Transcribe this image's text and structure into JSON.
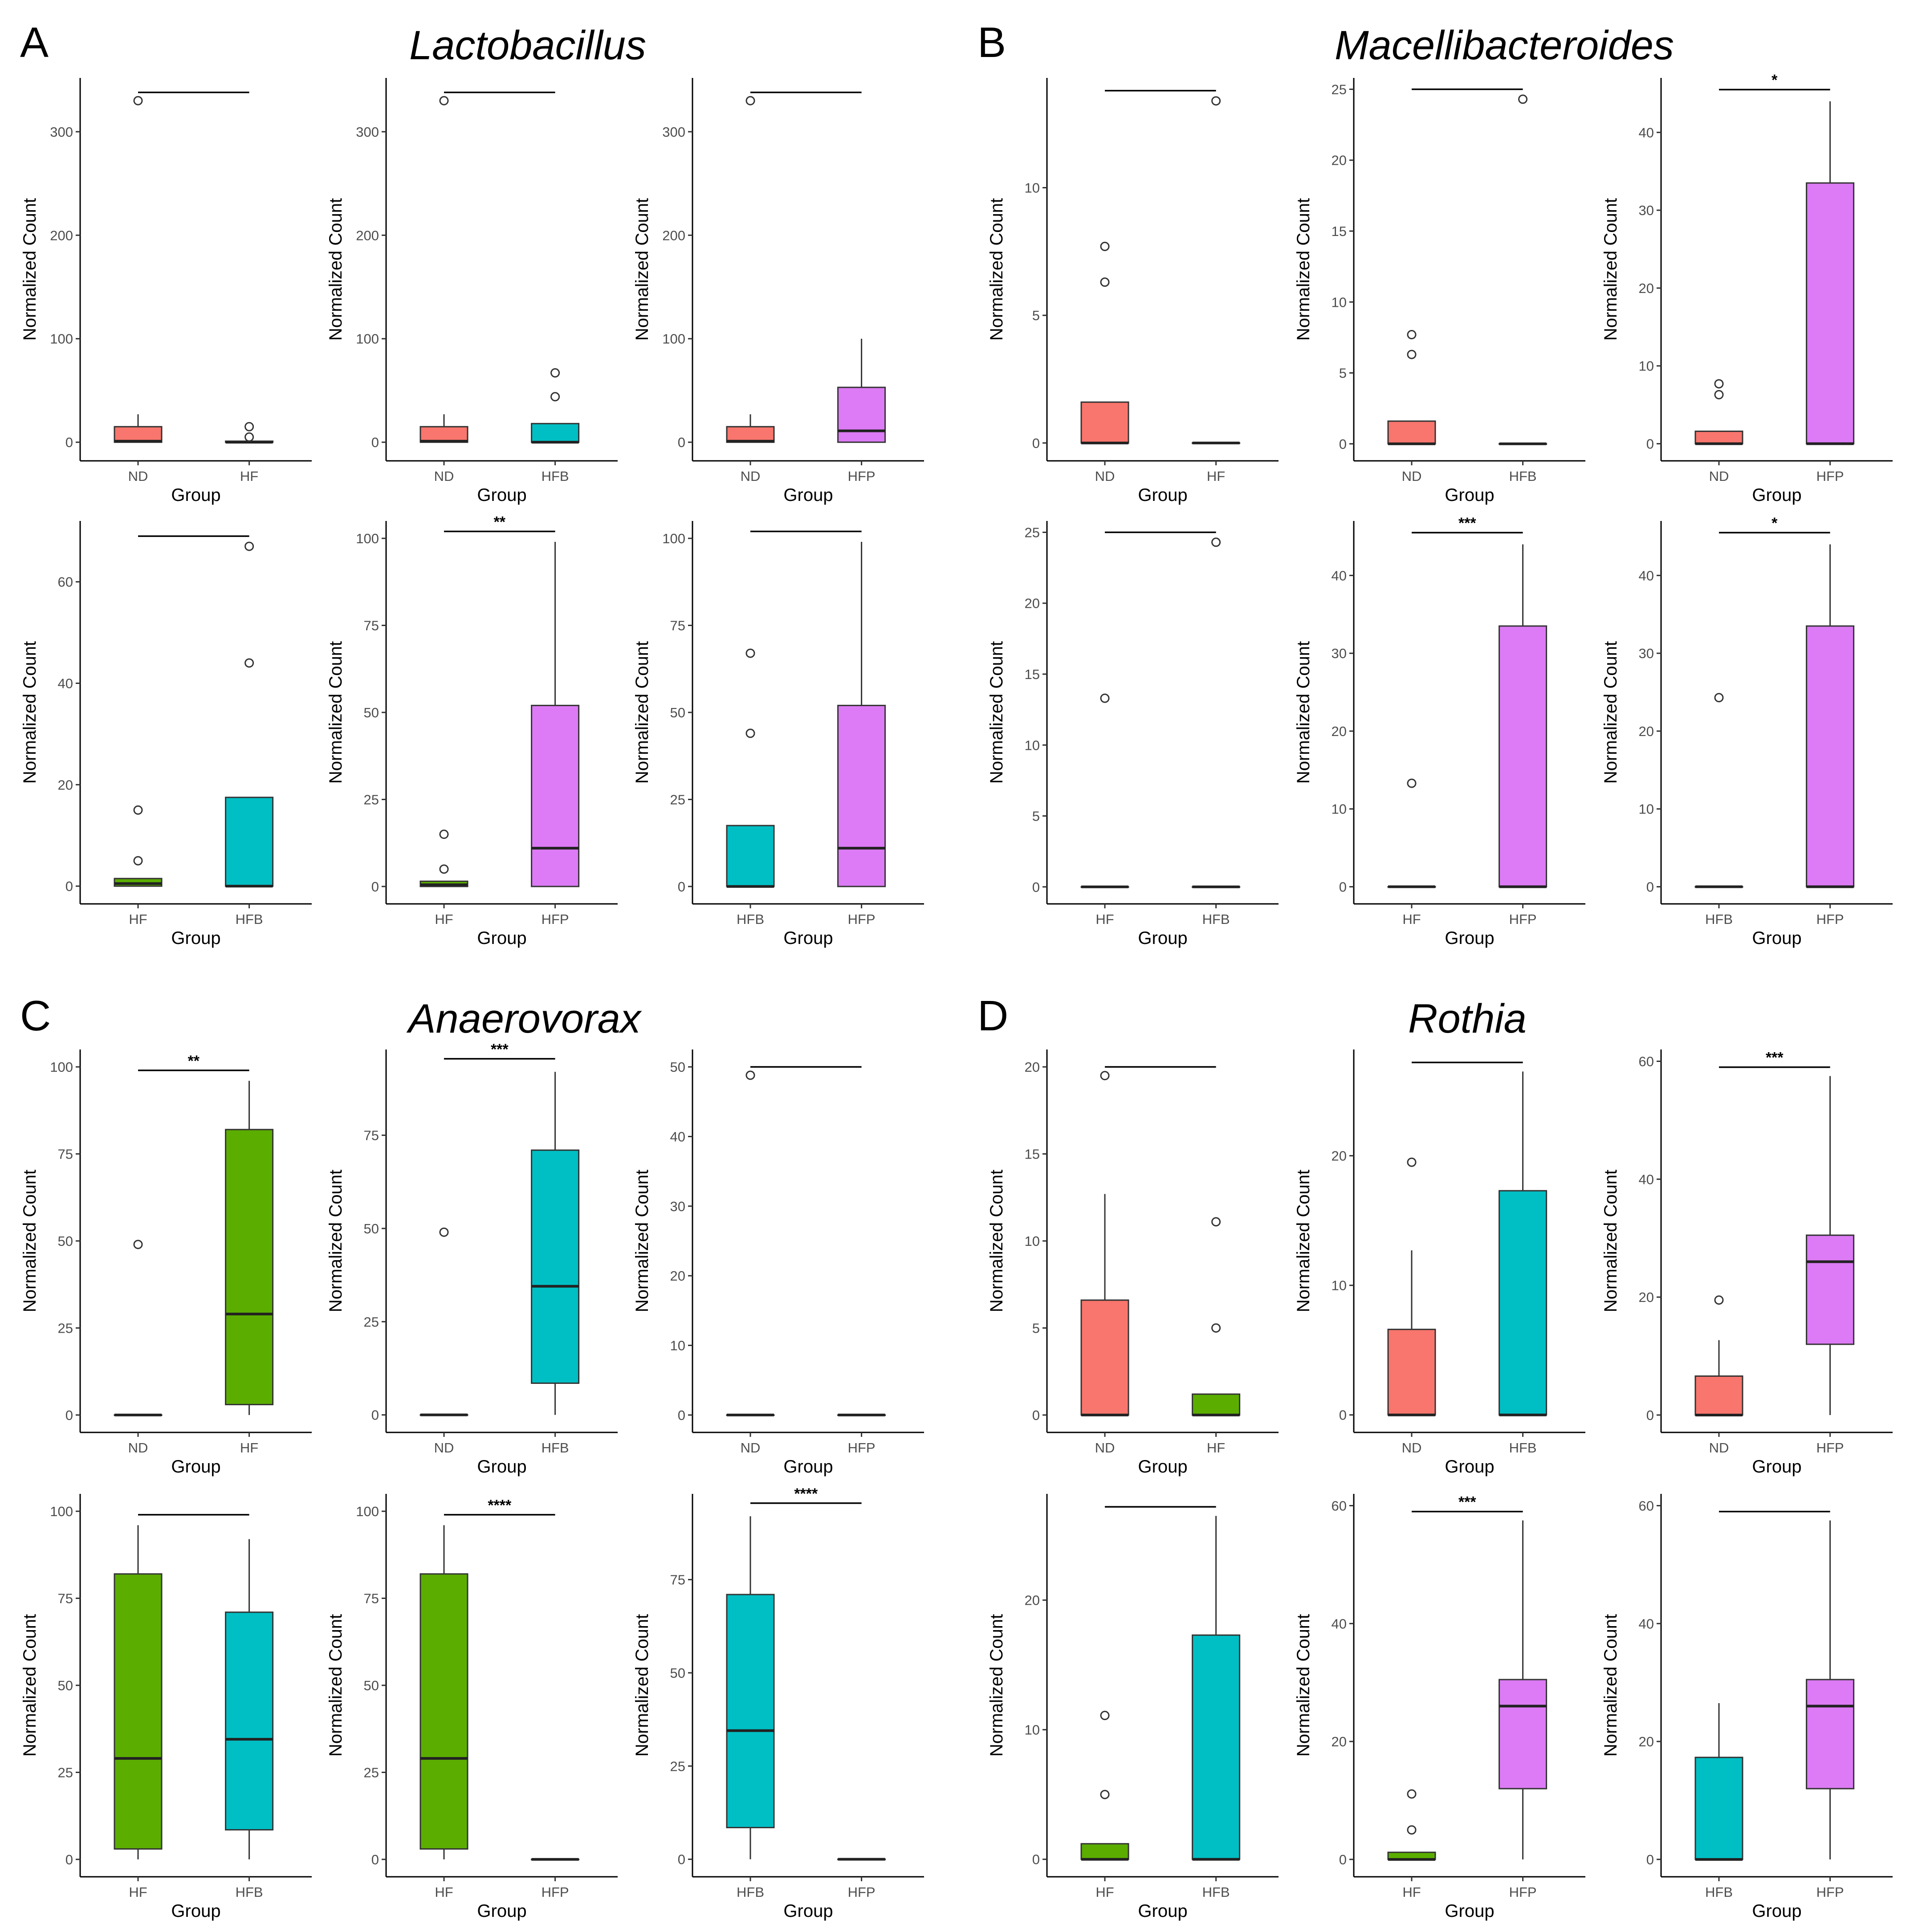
{
  "colors": {
    "ND": "#F8766D",
    "HF": "#5BAE00",
    "HFB": "#00BFC4",
    "HFP": "#DC7BF5"
  },
  "panels": [
    {
      "letter": "A",
      "title": "Lactobacillus"
    },
    {
      "letter": "B",
      "title": "Macellibacteroides"
    },
    {
      "letter": "C",
      "title": "Anaerovorax"
    },
    {
      "letter": "D",
      "title": "Rothia"
    }
  ],
  "chart_data": [
    {
      "type": "box",
      "panel": "A",
      "xlabel": "Group",
      "ylabel": "Normalized Count",
      "ylim": [
        -18,
        352
      ],
      "yticks": [
        0,
        100,
        200,
        300
      ],
      "sig_y": 338,
      "sig": "",
      "groups": [
        {
          "name": "ND",
          "q1": 0,
          "median": 1,
          "q3": 15,
          "lo": 0,
          "hi": 27,
          "outliers": [
            330
          ]
        },
        {
          "name": "HF",
          "q1": 0,
          "median": 0,
          "q3": 1,
          "lo": 0,
          "hi": 1,
          "outliers": [
            5,
            15
          ]
        }
      ]
    },
    {
      "type": "box",
      "panel": "A",
      "xlabel": "Group",
      "ylabel": "Normalized Count",
      "ylim": [
        -18,
        352
      ],
      "yticks": [
        0,
        100,
        200,
        300
      ],
      "sig_y": 338,
      "sig": "",
      "groups": [
        {
          "name": "ND",
          "q1": 0,
          "median": 1,
          "q3": 15,
          "lo": 0,
          "hi": 27,
          "outliers": [
            330
          ]
        },
        {
          "name": "HFB",
          "q1": 0,
          "median": 0,
          "q3": 18,
          "lo": 0,
          "hi": 18,
          "outliers": [
            44,
            67
          ]
        }
      ]
    },
    {
      "type": "box",
      "panel": "A",
      "xlabel": "Group",
      "ylabel": "Normalized Count",
      "ylim": [
        -18,
        352
      ],
      "yticks": [
        0,
        100,
        200,
        300
      ],
      "sig_y": 338,
      "sig": "",
      "groups": [
        {
          "name": "ND",
          "q1": 0,
          "median": 1,
          "q3": 15,
          "lo": 0,
          "hi": 27,
          "outliers": [
            330
          ]
        },
        {
          "name": "HFP",
          "q1": 0,
          "median": 11,
          "q3": 53,
          "lo": 0,
          "hi": 100,
          "outliers": []
        }
      ]
    },
    {
      "type": "box",
      "panel": "A",
      "xlabel": "Group",
      "ylabel": "Normalized Count",
      "ylim": [
        -3.5,
        72
      ],
      "yticks": [
        0,
        20,
        40,
        60
      ],
      "sig_y": 69,
      "sig": "",
      "groups": [
        {
          "name": "HF",
          "q1": 0,
          "median": 0.5,
          "q3": 1.5,
          "lo": 0,
          "hi": 1.5,
          "outliers": [
            5,
            15
          ]
        },
        {
          "name": "HFB",
          "q1": 0,
          "median": 0,
          "q3": 17.5,
          "lo": 0,
          "hi": 17.5,
          "outliers": [
            44,
            67
          ]
        }
      ]
    },
    {
      "type": "box",
      "panel": "A",
      "xlabel": "Group",
      "ylabel": "Normalized Count",
      "ylim": [
        -5,
        105
      ],
      "yticks": [
        0,
        25,
        50,
        75,
        100
      ],
      "sig_y": 102,
      "sig": "**",
      "groups": [
        {
          "name": "HF",
          "q1": 0,
          "median": 0.5,
          "q3": 1.5,
          "lo": 0,
          "hi": 1.5,
          "outliers": [
            5,
            15
          ]
        },
        {
          "name": "HFP",
          "q1": 0,
          "median": 11,
          "q3": 52,
          "lo": 0,
          "hi": 99,
          "outliers": []
        }
      ]
    },
    {
      "type": "box",
      "panel": "A",
      "xlabel": "Group",
      "ylabel": "Normalized Count",
      "ylim": [
        -5,
        105
      ],
      "yticks": [
        0,
        25,
        50,
        75,
        100
      ],
      "sig_y": 102,
      "sig": "",
      "groups": [
        {
          "name": "HFB",
          "q1": 0,
          "median": 0,
          "q3": 17.5,
          "lo": 0,
          "hi": 17.5,
          "outliers": [
            44,
            67
          ]
        },
        {
          "name": "HFP",
          "q1": 0,
          "median": 11,
          "q3": 52,
          "lo": 0,
          "hi": 99,
          "outliers": []
        }
      ]
    },
    {
      "type": "box",
      "panel": "B",
      "xlabel": "Group",
      "ylabel": "Normalized Count",
      "ylim": [
        -0.7,
        14.3
      ],
      "yticks": [
        0,
        5,
        10
      ],
      "sig_y": 13.8,
      "sig": "",
      "groups": [
        {
          "name": "ND",
          "q1": 0,
          "median": 0,
          "q3": 1.6,
          "lo": 0,
          "hi": 1.6,
          "outliers": [
            6.3,
            7.7
          ]
        },
        {
          "name": "HF",
          "q1": 0,
          "median": 0,
          "q3": 0,
          "lo": 0,
          "hi": 0,
          "outliers": [
            13.4
          ]
        }
      ]
    },
    {
      "type": "box",
      "panel": "B",
      "xlabel": "Group",
      "ylabel": "Normalized Count",
      "ylim": [
        -1.2,
        25.8
      ],
      "yticks": [
        0,
        5,
        10,
        15,
        20,
        25
      ],
      "sig_y": 25,
      "sig": "",
      "groups": [
        {
          "name": "ND",
          "q1": 0,
          "median": 0,
          "q3": 1.6,
          "lo": 0,
          "hi": 1.6,
          "outliers": [
            6.3,
            7.7
          ]
        },
        {
          "name": "HFB",
          "q1": 0,
          "median": 0,
          "q3": 0,
          "lo": 0,
          "hi": 0,
          "outliers": [
            24.3
          ]
        }
      ]
    },
    {
      "type": "box",
      "panel": "B",
      "xlabel": "Group",
      "ylabel": "Normalized Count",
      "ylim": [
        -2.2,
        47
      ],
      "yticks": [
        0,
        10,
        20,
        30,
        40
      ],
      "sig_y": 45.5,
      "sig": "*",
      "groups": [
        {
          "name": "ND",
          "q1": 0,
          "median": 0,
          "q3": 1.6,
          "lo": 0,
          "hi": 1.6,
          "outliers": [
            6.3,
            7.7
          ]
        },
        {
          "name": "HFP",
          "q1": 0,
          "median": 0,
          "q3": 33.5,
          "lo": 0,
          "hi": 44,
          "outliers": []
        }
      ]
    },
    {
      "type": "box",
      "panel": "B",
      "xlabel": "Group",
      "ylabel": "Normalized Count",
      "ylim": [
        -1.2,
        25.8
      ],
      "yticks": [
        0,
        5,
        10,
        15,
        20,
        25
      ],
      "sig_y": 25,
      "sig": "",
      "groups": [
        {
          "name": "HF",
          "q1": 0,
          "median": 0,
          "q3": 0,
          "lo": 0,
          "hi": 0,
          "outliers": [
            13.3
          ]
        },
        {
          "name": "HFB",
          "q1": 0,
          "median": 0,
          "q3": 0,
          "lo": 0,
          "hi": 0,
          "outliers": [
            24.3
          ]
        }
      ]
    },
    {
      "type": "box",
      "panel": "B",
      "xlabel": "Group",
      "ylabel": "Normalized Count",
      "ylim": [
        -2.2,
        47
      ],
      "yticks": [
        0,
        10,
        20,
        30,
        40
      ],
      "sig_y": 45.5,
      "sig": "***",
      "groups": [
        {
          "name": "HF",
          "q1": 0,
          "median": 0,
          "q3": 0,
          "lo": 0,
          "hi": 0,
          "outliers": [
            13.3
          ]
        },
        {
          "name": "HFP",
          "q1": 0,
          "median": 0,
          "q3": 33.5,
          "lo": 0,
          "hi": 44,
          "outliers": []
        }
      ]
    },
    {
      "type": "box",
      "panel": "B",
      "xlabel": "Group",
      "ylabel": "Normalized Count",
      "ylim": [
        -2.2,
        47
      ],
      "yticks": [
        0,
        10,
        20,
        30,
        40
      ],
      "sig_y": 45.5,
      "sig": "*",
      "groups": [
        {
          "name": "HFB",
          "q1": 0,
          "median": 0,
          "q3": 0,
          "lo": 0,
          "hi": 0,
          "outliers": [
            24.3
          ]
        },
        {
          "name": "HFP",
          "q1": 0,
          "median": 0,
          "q3": 33.5,
          "lo": 0,
          "hi": 44,
          "outliers": []
        }
      ]
    },
    {
      "type": "box",
      "panel": "C",
      "xlabel": "Group",
      "ylabel": "Normalized Count",
      "ylim": [
        -5,
        105
      ],
      "yticks": [
        0,
        25,
        50,
        75,
        100
      ],
      "sig_y": 99,
      "sig": "**",
      "groups": [
        {
          "name": "ND",
          "q1": 0,
          "median": 0,
          "q3": 0,
          "lo": 0,
          "hi": 0,
          "outliers": [
            49
          ]
        },
        {
          "name": "HF",
          "q1": 3,
          "median": 29,
          "q3": 82,
          "lo": 0,
          "hi": 96,
          "outliers": []
        }
      ]
    },
    {
      "type": "box",
      "panel": "C",
      "xlabel": "Group",
      "ylabel": "Normalized Count",
      "ylim": [
        -4.7,
        98
      ],
      "yticks": [
        0,
        25,
        50,
        75
      ],
      "sig_y": 95.5,
      "sig": "***",
      "groups": [
        {
          "name": "ND",
          "q1": 0,
          "median": 0,
          "q3": 0,
          "lo": 0,
          "hi": 0,
          "outliers": [
            49
          ]
        },
        {
          "name": "HFB",
          "q1": 8.5,
          "median": 34.5,
          "q3": 71,
          "lo": 0,
          "hi": 92,
          "outliers": []
        }
      ]
    },
    {
      "type": "box",
      "panel": "C",
      "xlabel": "Group",
      "ylabel": "Normalized Count",
      "ylim": [
        -2.5,
        52.5
      ],
      "yticks": [
        0,
        10,
        20,
        30,
        40,
        50
      ],
      "sig_y": 50,
      "sig": "",
      "groups": [
        {
          "name": "ND",
          "q1": 0,
          "median": 0,
          "q3": 0,
          "lo": 0,
          "hi": 0,
          "outliers": [
            48.8
          ]
        },
        {
          "name": "HFP",
          "q1": 0,
          "median": 0,
          "q3": 0,
          "lo": 0,
          "hi": 0,
          "outliers": []
        }
      ]
    },
    {
      "type": "box",
      "panel": "C",
      "xlabel": "Group",
      "ylabel": "Normalized Count",
      "ylim": [
        -5,
        105
      ],
      "yticks": [
        0,
        25,
        50,
        75,
        100
      ],
      "sig_y": 99,
      "sig": "",
      "groups": [
        {
          "name": "HF",
          "q1": 3,
          "median": 29,
          "q3": 82,
          "lo": 0,
          "hi": 96,
          "outliers": []
        },
        {
          "name": "HFB",
          "q1": 8.5,
          "median": 34.5,
          "q3": 71,
          "lo": 0,
          "hi": 92,
          "outliers": []
        }
      ]
    },
    {
      "type": "box",
      "panel": "C",
      "xlabel": "Group",
      "ylabel": "Normalized Count",
      "ylim": [
        -5,
        105
      ],
      "yticks": [
        0,
        25,
        50,
        75,
        100
      ],
      "sig_y": 99,
      "sig": "****",
      "groups": [
        {
          "name": "HF",
          "q1": 3,
          "median": 29,
          "q3": 82,
          "lo": 0,
          "hi": 96,
          "outliers": []
        },
        {
          "name": "HFP",
          "q1": 0,
          "median": 0,
          "q3": 0,
          "lo": 0,
          "hi": 0,
          "outliers": []
        }
      ]
    },
    {
      "type": "box",
      "panel": "C",
      "xlabel": "Group",
      "ylabel": "Normalized Count",
      "ylim": [
        -4.7,
        98
      ],
      "yticks": [
        0,
        25,
        50,
        75
      ],
      "sig_y": 95.5,
      "sig": "****",
      "groups": [
        {
          "name": "HFB",
          "q1": 8.5,
          "median": 34.5,
          "q3": 71,
          "lo": 0,
          "hi": 92,
          "outliers": []
        },
        {
          "name": "HFP",
          "q1": 0,
          "median": 0,
          "q3": 0,
          "lo": 0,
          "hi": 0,
          "outliers": []
        }
      ]
    },
    {
      "type": "box",
      "panel": "D",
      "xlabel": "Group",
      "ylabel": "Normalized Count",
      "ylim": [
        -1,
        21
      ],
      "yticks": [
        0,
        5,
        10,
        15,
        20
      ],
      "sig_y": 20,
      "sig": "",
      "groups": [
        {
          "name": "ND",
          "q1": 0,
          "median": 0,
          "q3": 6.6,
          "lo": 0,
          "hi": 12.7,
          "outliers": [
            19.5
          ]
        },
        {
          "name": "HF",
          "q1": 0,
          "median": 0,
          "q3": 1.2,
          "lo": 0,
          "hi": 1.2,
          "outliers": [
            5,
            11.1
          ]
        }
      ]
    },
    {
      "type": "box",
      "panel": "D",
      "xlabel": "Group",
      "ylabel": "Normalized Count",
      "ylim": [
        -1.35,
        28.2
      ],
      "yticks": [
        0,
        10,
        20
      ],
      "sig_y": 27.2,
      "sig": "",
      "groups": [
        {
          "name": "ND",
          "q1": 0,
          "median": 0,
          "q3": 6.6,
          "lo": 0,
          "hi": 12.7,
          "outliers": [
            19.5
          ]
        },
        {
          "name": "HFB",
          "q1": 0,
          "median": 0,
          "q3": 17.3,
          "lo": 0,
          "hi": 26.5,
          "outliers": []
        }
      ]
    },
    {
      "type": "box",
      "panel": "D",
      "xlabel": "Group",
      "ylabel": "Normalized Count",
      "ylim": [
        -2.95,
        62
      ],
      "yticks": [
        0,
        20,
        40,
        60
      ],
      "sig_y": 59,
      "sig": "***",
      "groups": [
        {
          "name": "ND",
          "q1": 0,
          "median": 0,
          "q3": 6.6,
          "lo": 0,
          "hi": 12.7,
          "outliers": [
            19.5
          ]
        },
        {
          "name": "HFP",
          "q1": 12,
          "median": 26,
          "q3": 30.5,
          "lo": 0,
          "hi": 57.5,
          "outliers": []
        }
      ]
    },
    {
      "type": "box",
      "panel": "D",
      "xlabel": "Group",
      "ylabel": "Normalized Count",
      "ylim": [
        -1.35,
        28.2
      ],
      "yticks": [
        0,
        10,
        20
      ],
      "sig_y": 27.2,
      "sig": "",
      "groups": [
        {
          "name": "HF",
          "q1": 0,
          "median": 0,
          "q3": 1.2,
          "lo": 0,
          "hi": 1.2,
          "outliers": [
            5,
            11.1
          ]
        },
        {
          "name": "HFB",
          "q1": 0,
          "median": 0,
          "q3": 17.3,
          "lo": 0,
          "hi": 26.5,
          "outliers": []
        }
      ]
    },
    {
      "type": "box",
      "panel": "D",
      "xlabel": "Group",
      "ylabel": "Normalized Count",
      "ylim": [
        -2.95,
        62
      ],
      "yticks": [
        0,
        20,
        40,
        60
      ],
      "sig_y": 59,
      "sig": "***",
      "groups": [
        {
          "name": "HF",
          "q1": 0,
          "median": 0,
          "q3": 1.2,
          "lo": 0,
          "hi": 1.2,
          "outliers": [
            5,
            11.1
          ]
        },
        {
          "name": "HFP",
          "q1": 12,
          "median": 26,
          "q3": 30.5,
          "lo": 0,
          "hi": 57.5,
          "outliers": []
        }
      ]
    },
    {
      "type": "box",
      "panel": "D",
      "xlabel": "Group",
      "ylabel": "Normalized Count",
      "ylim": [
        -2.95,
        62
      ],
      "yticks": [
        0,
        20,
        40,
        60
      ],
      "sig_y": 59,
      "sig": "",
      "groups": [
        {
          "name": "HFB",
          "q1": 0,
          "median": 0,
          "q3": 17.3,
          "lo": 0,
          "hi": 26.5,
          "outliers": []
        },
        {
          "name": "HFP",
          "q1": 12,
          "median": 26,
          "q3": 30.5,
          "lo": 0,
          "hi": 57.5,
          "outliers": []
        }
      ]
    }
  ]
}
